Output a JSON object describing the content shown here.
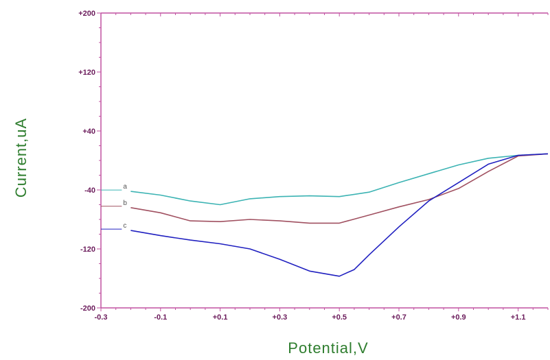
{
  "chart_data": {
    "type": "line",
    "xlabel": "Potential,V",
    "ylabel": "Current,uA",
    "xlim": [
      -0.3,
      1.2
    ],
    "ylim": [
      -200,
      200
    ],
    "x_ticks": [
      -0.3,
      -0.1,
      0.1,
      0.3,
      0.5,
      0.7,
      0.9,
      1.1
    ],
    "x_tick_labels": [
      "-0.3",
      "-0.1",
      "+0.1",
      "+0.3",
      "+0.5",
      "+0.7",
      "+0.9",
      "+1.1"
    ],
    "y_ticks": [
      -200,
      -120,
      -40,
      40,
      120,
      200
    ],
    "y_tick_labels": [
      "-200",
      "-120",
      "-40",
      "+40",
      "+120",
      "+200"
    ],
    "grid": false,
    "series": [
      {
        "name": "a",
        "color": "#3bb3b3",
        "x": [
          -0.2,
          -0.1,
          0.0,
          0.1,
          0.2,
          0.3,
          0.4,
          0.5,
          0.6,
          0.7,
          0.8,
          0.9,
          1.0,
          1.1,
          1.2
        ],
        "y": [
          -42,
          -47,
          -55,
          -60,
          -52,
          -49,
          -48,
          -49,
          -43,
          -30,
          -18,
          -6,
          3,
          7,
          9
        ]
      },
      {
        "name": "b",
        "color": "#a05060",
        "x": [
          -0.2,
          -0.1,
          0.0,
          0.1,
          0.2,
          0.3,
          0.4,
          0.5,
          0.6,
          0.7,
          0.8,
          0.9,
          1.0,
          1.1,
          1.2
        ],
        "y": [
          -64,
          -71,
          -82,
          -83,
          -80,
          -82,
          -85,
          -85,
          -74,
          -63,
          -53,
          -38,
          -15,
          6,
          9
        ]
      },
      {
        "name": "c",
        "color": "#2020c0",
        "x": [
          -0.2,
          -0.1,
          0.0,
          0.1,
          0.2,
          0.3,
          0.4,
          0.5,
          0.55,
          0.6,
          0.7,
          0.8,
          0.9,
          1.0,
          1.1,
          1.2
        ],
        "y": [
          -95,
          -102,
          -108,
          -113,
          -120,
          -134,
          -150,
          -157,
          -148,
          -128,
          -90,
          -55,
          -30,
          -5,
          7,
          9
        ]
      }
    ]
  }
}
